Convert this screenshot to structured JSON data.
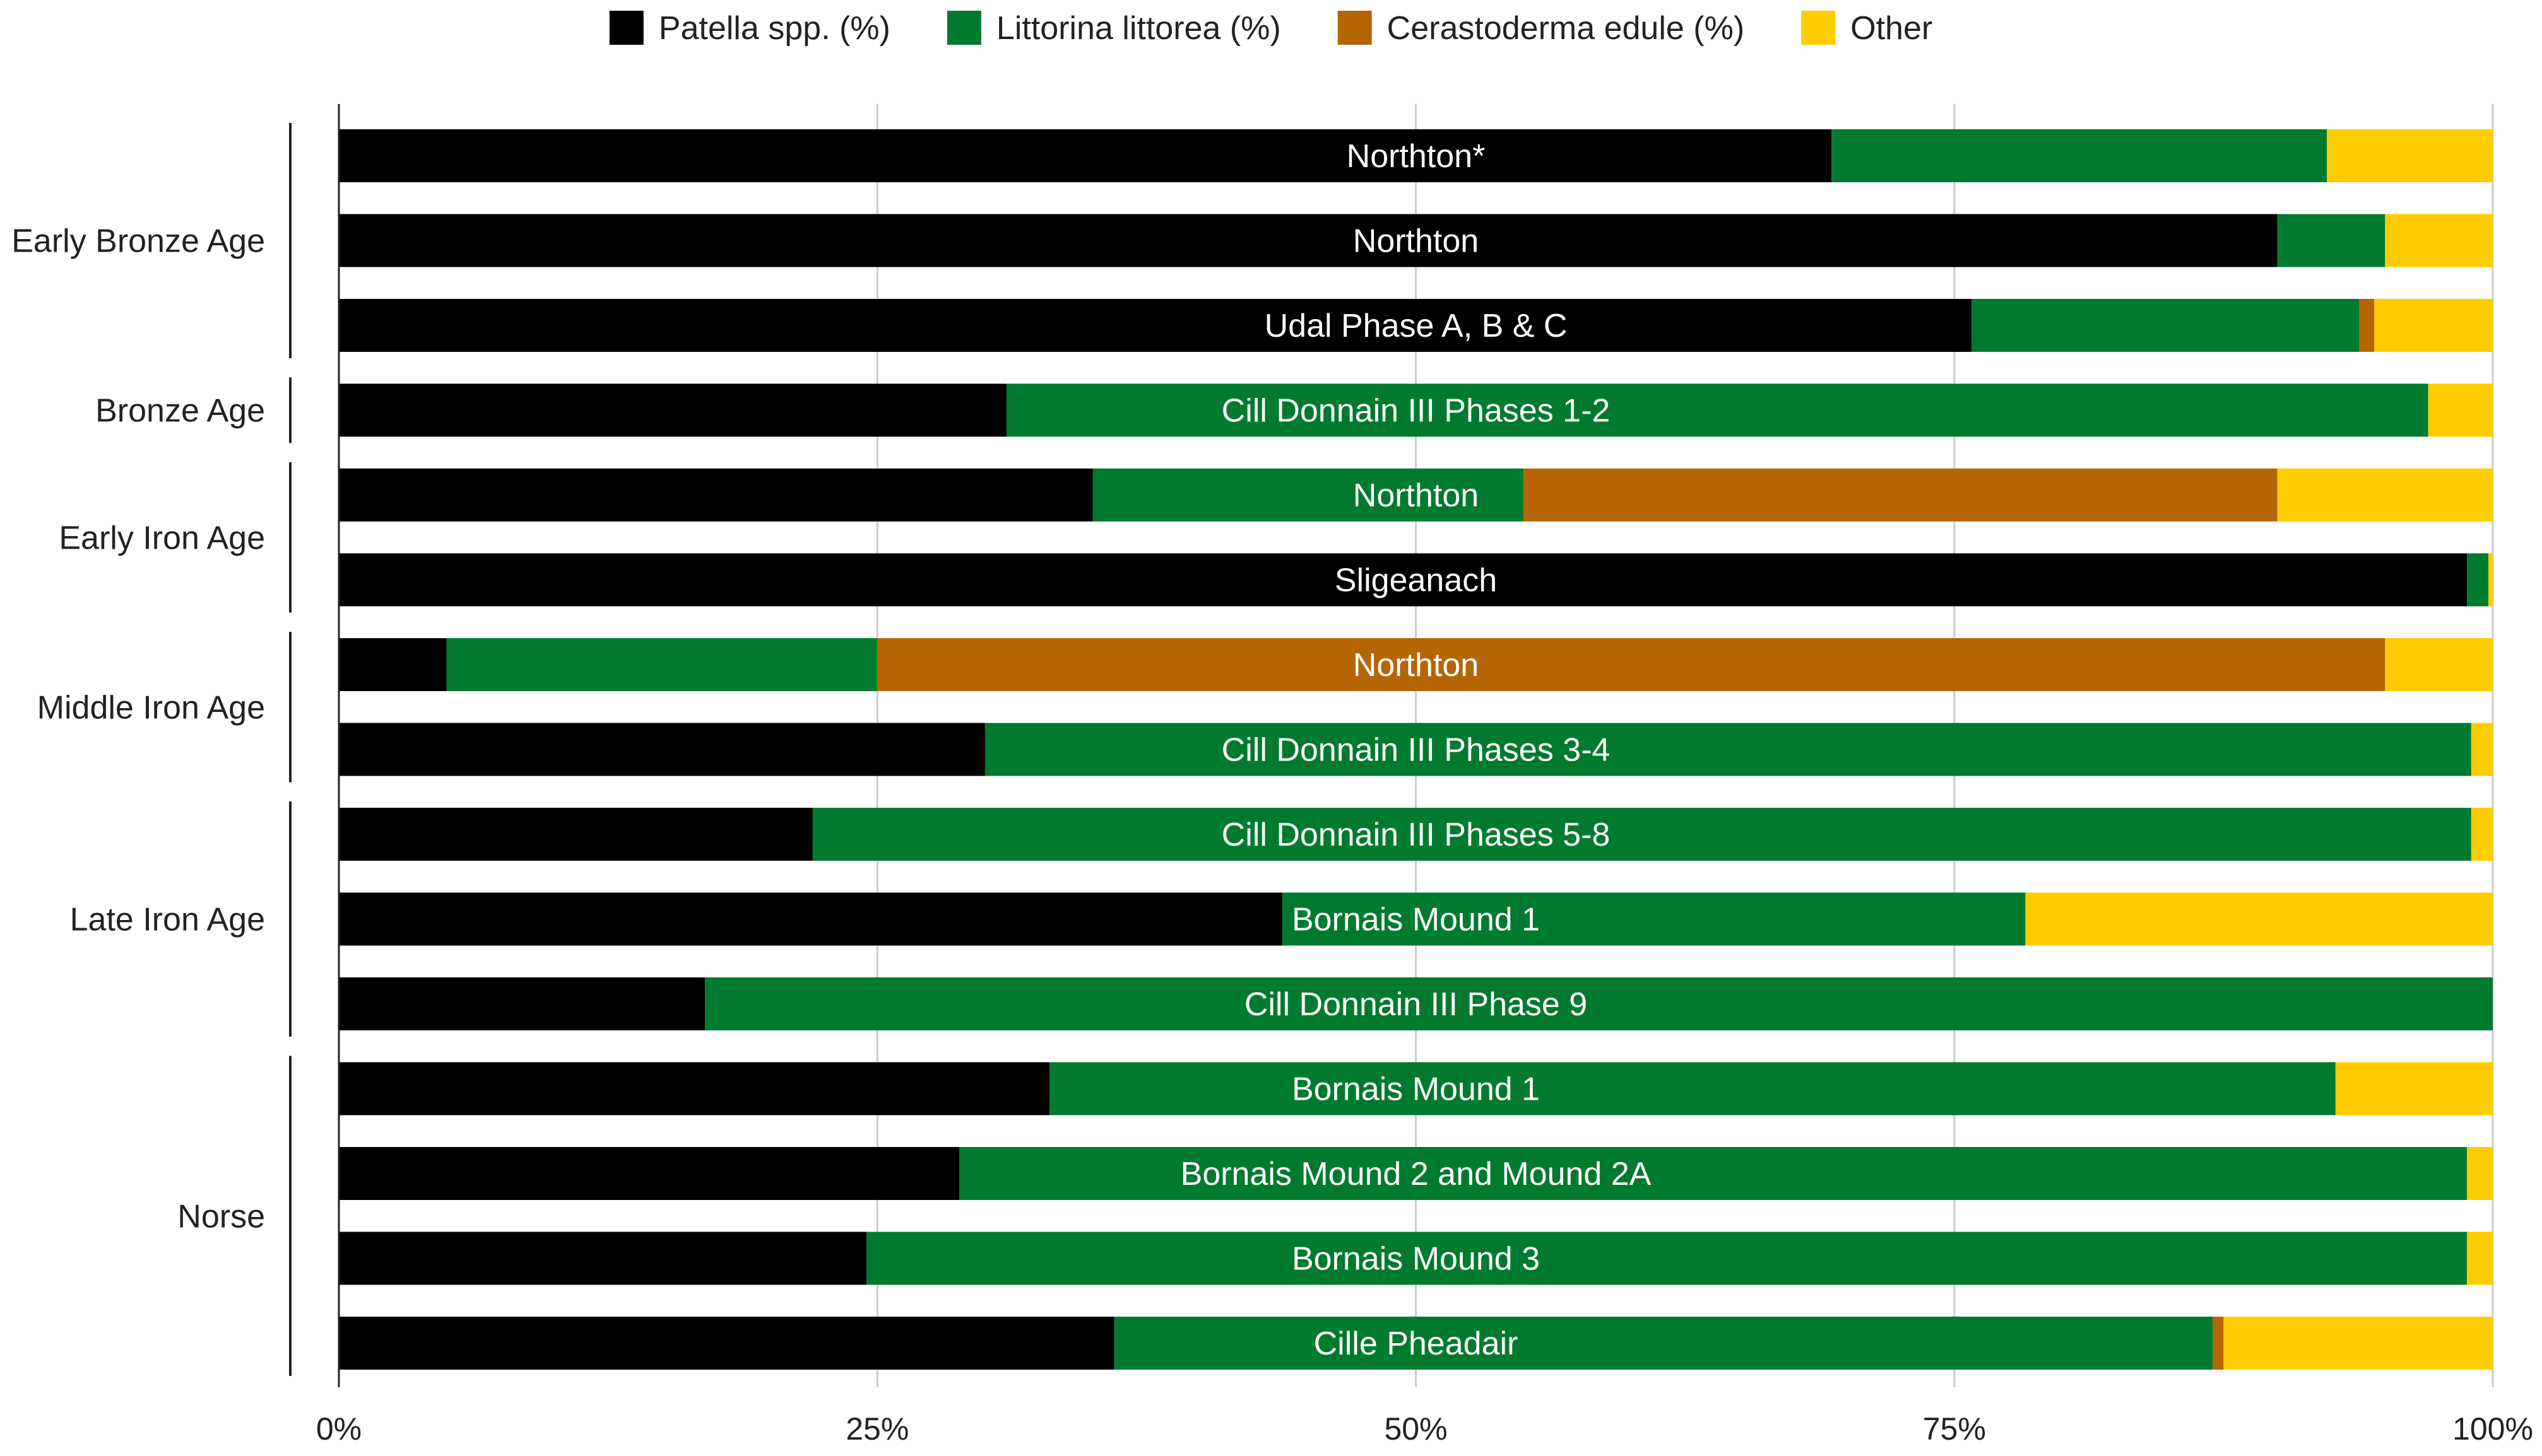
{
  "chart_data": {
    "type": "bar",
    "orientation": "horizontal",
    "stacked": "percent",
    "title": "",
    "xlabel": "",
    "ylabel": "",
    "xlim": [
      0,
      100
    ],
    "grid": true,
    "legend_position": "top",
    "tick_labels": [
      "0%",
      "25%",
      "50%",
      "75%",
      "100%"
    ],
    "series": [
      {
        "key": "patella",
        "name": "Patella spp. (%)",
        "color": "#000000"
      },
      {
        "key": "littorina",
        "name": "Littorina littorea (%)",
        "color": "#007a2e"
      },
      {
        "key": "cerastoderma",
        "name": "Cerastoderma edule (%)",
        "color": "#b56505"
      },
      {
        "key": "other",
        "name": "Other",
        "color": "#ffcc00"
      }
    ],
    "groups": [
      {
        "label": "Early Bronze Age",
        "rows": [
          0,
          1,
          2
        ]
      },
      {
        "label": "Bronze Age",
        "rows": [
          3
        ]
      },
      {
        "label": "Early Iron Age",
        "rows": [
          4,
          5
        ]
      },
      {
        "label": "Middle Iron Age",
        "rows": [
          6,
          7
        ]
      },
      {
        "label": "Late Iron Age",
        "rows": [
          8,
          9,
          10
        ]
      },
      {
        "label": "Norse",
        "rows": [
          11,
          12,
          13,
          14
        ]
      }
    ],
    "rows": [
      {
        "label": "Northton*",
        "values": [
          69.3,
          23.0,
          0.0,
          7.7
        ]
      },
      {
        "label": "Northton",
        "values": [
          90.0,
          5.0,
          0.0,
          5.0
        ]
      },
      {
        "label": "Udal Phase A, B & C",
        "values": [
          75.8,
          18.0,
          0.7,
          5.5
        ]
      },
      {
        "label": "Cill Donnain III Phases 1-2",
        "values": [
          31.0,
          66.0,
          0.0,
          3.0
        ]
      },
      {
        "label": "Northton",
        "values": [
          35.0,
          20.0,
          35.0,
          10.0
        ]
      },
      {
        "label": "Sligeanach",
        "values": [
          98.8,
          1.0,
          0.0,
          0.2
        ]
      },
      {
        "label": "Northton",
        "values": [
          5.0,
          20.0,
          70.0,
          5.0
        ]
      },
      {
        "label": "Cill Donnain III Phases 3-4",
        "values": [
          30.0,
          69.0,
          0.0,
          1.0
        ]
      },
      {
        "label": "Cill Donnain III Phases 5-8",
        "values": [
          22.0,
          77.0,
          0.0,
          1.0
        ]
      },
      {
        "label": "Bornais Mound 1",
        "values": [
          43.8,
          34.5,
          0.0,
          21.7
        ]
      },
      {
        "label": "Cill Donnain III Phase 9",
        "values": [
          17.0,
          83.0,
          0.0,
          0.0
        ]
      },
      {
        "label": "Bornais Mound 1",
        "values": [
          33.0,
          59.7,
          0.0,
          7.3
        ]
      },
      {
        "label": "Bornais Mound 2 and Mound 2A",
        "values": [
          28.8,
          70.0,
          0.0,
          1.2
        ]
      },
      {
        "label": "Bornais Mound 3",
        "values": [
          24.5,
          74.3,
          0.0,
          1.2
        ]
      },
      {
        "label": "Cille Pheadair",
        "values": [
          36.0,
          51.0,
          0.5,
          12.5
        ]
      }
    ]
  }
}
